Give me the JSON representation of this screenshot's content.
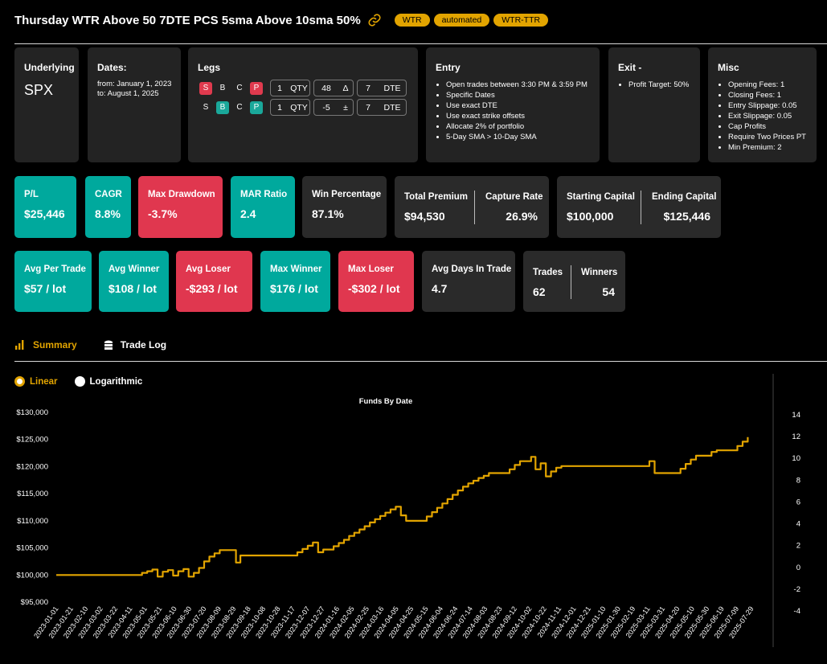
{
  "header": {
    "title": "Thursday WTR Above 50 7DTE PCS 5sma Above 10sma 50%",
    "tags": [
      "WTR",
      "automated",
      "WTR-TTR"
    ]
  },
  "config": {
    "underlying": {
      "label": "Underlying",
      "value": "SPX"
    },
    "dates": {
      "label": "Dates:",
      "from": "from: January 1, 2023",
      "to": "to: August 1, 2025"
    },
    "legs": {
      "label": "Legs",
      "rows": [
        {
          "s": "S",
          "b": "B",
          "c": "C",
          "p": "P",
          "qty": "1",
          "qty_unit": "QTY",
          "strike": "48",
          "strike_unit": "Δ",
          "dte": "7",
          "dte_unit": "DTE"
        },
        {
          "s": "S",
          "b": "B",
          "c": "C",
          "p": "P",
          "qty": "1",
          "qty_unit": "QTY",
          "strike": "-5",
          "strike_unit": "±",
          "dte": "7",
          "dte_unit": "DTE"
        }
      ]
    },
    "entry": {
      "label": "Entry",
      "items": [
        "Open trades between 3:30 PM & 3:59 PM",
        "Specific Dates",
        "Use exact DTE",
        "Use exact strike offsets",
        "Allocate 2% of portfolio",
        "5-Day SMA > 10-Day SMA"
      ]
    },
    "exit": {
      "label": "Exit -",
      "items": [
        "Profit Target: 50%"
      ]
    },
    "misc": {
      "label": "Misc",
      "items": [
        "Opening Fees: 1",
        "Closing Fees: 1",
        "Entry Slippage: 0.05",
        "Exit Slippage: 0.05",
        "Cap Profits",
        "Require Two Prices PT",
        "Min Premium: 2"
      ]
    }
  },
  "stats_row1": {
    "pl": {
      "label": "P/L",
      "value": "$25,446"
    },
    "cagr": {
      "label": "CAGR",
      "value": "8.8%"
    },
    "max_drawdown": {
      "label": "Max Drawdown",
      "value": "-3.7%"
    },
    "mar": {
      "label": "MAR Ratio",
      "value": "2.4"
    },
    "win_pct": {
      "label": "Win Percentage",
      "value": "87.1%"
    },
    "total_premium": {
      "label": "Total Premium",
      "value": "$94,530"
    },
    "capture_rate": {
      "label": "Capture Rate",
      "value": "26.9%"
    },
    "starting_capital": {
      "label": "Starting Capital",
      "value": "$100,000"
    },
    "ending_capital": {
      "label": "Ending Capital",
      "value": "$125,446"
    }
  },
  "stats_row2": {
    "avg_per_trade": {
      "label": "Avg Per Trade",
      "value": "$57 / lot"
    },
    "avg_winner": {
      "label": "Avg Winner",
      "value": "$108 / lot"
    },
    "avg_loser": {
      "label": "Avg Loser",
      "value": "-$293 / lot"
    },
    "max_winner": {
      "label": "Max Winner",
      "value": "$176 / lot"
    },
    "max_loser": {
      "label": "Max Loser",
      "value": "-$302 / lot"
    },
    "avg_days": {
      "label": "Avg Days In Trade",
      "value": "4.7"
    },
    "trades": {
      "label": "Trades",
      "value": "62"
    },
    "winners": {
      "label": "Winners",
      "value": "54"
    }
  },
  "tabs": {
    "summary": "Summary",
    "trade_log": "Trade Log"
  },
  "scale_options": {
    "linear": "Linear",
    "log": "Logarithmic",
    "selected": "linear"
  },
  "colors": {
    "accent": "#e2a400",
    "teal": "#00a99d",
    "red": "#e0374f",
    "card": "#232323"
  },
  "chart_data": {
    "type": "line",
    "title": "Funds By Date",
    "ylim": [
      95000,
      130000
    ],
    "yticks": [
      "$95,000",
      "$100,000",
      "$105,000",
      "$110,000",
      "$115,000",
      "$120,000",
      "$125,000",
      "$130,000"
    ],
    "y2ticks": [
      "-4",
      "-2",
      "0",
      "2",
      "4",
      "6",
      "8",
      "10",
      "12",
      "14"
    ],
    "xticks": [
      "2023-01-01",
      "2023-01-21",
      "2023-02-10",
      "2023-03-02",
      "2023-03-22",
      "2023-04-11",
      "2023-05-01",
      "2023-05-21",
      "2023-06-10",
      "2023-06-30",
      "2023-07-20",
      "2023-08-09",
      "2023-08-29",
      "2023-09-18",
      "2023-10-08",
      "2023-10-28",
      "2023-11-17",
      "2023-12-07",
      "2023-12-27",
      "2024-01-16",
      "2024-02-05",
      "2024-02-25",
      "2024-03-16",
      "2024-04-05",
      "2024-04-25",
      "2024-05-15",
      "2024-06-04",
      "2024-06-24",
      "2024-07-14",
      "2024-08-03",
      "2024-08-23",
      "2024-09-12",
      "2024-10-02",
      "2024-10-22",
      "2024-11-11",
      "2024-12-01",
      "2024-12-21",
      "2025-01-10",
      "2025-01-30",
      "2025-02-19",
      "2025-03-11",
      "2025-03-31",
      "2025-04-20",
      "2025-05-10",
      "2025-05-30",
      "2025-06-19",
      "2025-07-09",
      "2025-07-29"
    ],
    "series": [
      {
        "color": "#e2a400",
        "points": [
          [
            "2023-01-01",
            100000
          ],
          [
            "2023-04-26",
            100000
          ],
          [
            "2023-04-27",
            100400
          ],
          [
            "2023-05-04",
            100700
          ],
          [
            "2023-05-11",
            101000
          ],
          [
            "2023-05-18",
            99700
          ],
          [
            "2023-05-25",
            100600
          ],
          [
            "2023-06-01",
            100900
          ],
          [
            "2023-06-08",
            99900
          ],
          [
            "2023-06-15",
            100700
          ],
          [
            "2023-06-22",
            101100
          ],
          [
            "2023-06-29",
            99700
          ],
          [
            "2023-07-06",
            100400
          ],
          [
            "2023-07-13",
            101300
          ],
          [
            "2023-07-20",
            102500
          ],
          [
            "2023-07-27",
            103400
          ],
          [
            "2023-08-03",
            104000
          ],
          [
            "2023-08-10",
            104600
          ],
          [
            "2023-08-31",
            104600
          ],
          [
            "2023-09-01",
            102300
          ],
          [
            "2023-09-07",
            103600
          ],
          [
            "2023-11-16",
            103600
          ],
          [
            "2023-11-23",
            104200
          ],
          [
            "2023-11-30",
            104800
          ],
          [
            "2023-12-07",
            105400
          ],
          [
            "2023-12-14",
            106000
          ],
          [
            "2023-12-21",
            104200
          ],
          [
            "2023-12-28",
            104700
          ],
          [
            "2024-01-04",
            104700
          ],
          [
            "2024-01-11",
            105300
          ],
          [
            "2024-01-18",
            105900
          ],
          [
            "2024-01-25",
            106500
          ],
          [
            "2024-02-01",
            107200
          ],
          [
            "2024-02-08",
            107800
          ],
          [
            "2024-02-15",
            108400
          ],
          [
            "2024-02-22",
            109000
          ],
          [
            "2024-02-29",
            109700
          ],
          [
            "2024-03-07",
            110300
          ],
          [
            "2024-03-14",
            110900
          ],
          [
            "2024-03-21",
            111500
          ],
          [
            "2024-03-28",
            112100
          ],
          [
            "2024-04-04",
            112600
          ],
          [
            "2024-04-11",
            111000
          ],
          [
            "2024-04-18",
            110000
          ],
          [
            "2024-05-09",
            110000
          ],
          [
            "2024-05-16",
            110800
          ],
          [
            "2024-05-23",
            111600
          ],
          [
            "2024-05-30",
            112400
          ],
          [
            "2024-06-06",
            113200
          ],
          [
            "2024-06-13",
            114000
          ],
          [
            "2024-06-20",
            114800
          ],
          [
            "2024-06-27",
            115600
          ],
          [
            "2024-07-04",
            116300
          ],
          [
            "2024-07-11",
            116900
          ],
          [
            "2024-07-18",
            117400
          ],
          [
            "2024-07-25",
            117900
          ],
          [
            "2024-08-01",
            118300
          ],
          [
            "2024-08-08",
            118800
          ],
          [
            "2024-08-29",
            118800
          ],
          [
            "2024-09-05",
            119500
          ],
          [
            "2024-09-12",
            120300
          ],
          [
            "2024-09-19",
            121000
          ],
          [
            "2024-10-03",
            121000
          ],
          [
            "2024-10-04",
            121800
          ],
          [
            "2024-10-10",
            119500
          ],
          [
            "2024-10-17",
            120600
          ],
          [
            "2024-10-24",
            118200
          ],
          [
            "2024-10-31",
            119100
          ],
          [
            "2024-11-07",
            119800
          ],
          [
            "2024-11-14",
            120100
          ],
          [
            "2025-03-06",
            120100
          ],
          [
            "2025-03-13",
            121000
          ],
          [
            "2025-03-20",
            118800
          ],
          [
            "2025-04-17",
            118800
          ],
          [
            "2025-04-24",
            119600
          ],
          [
            "2025-05-01",
            120500
          ],
          [
            "2025-05-08",
            121300
          ],
          [
            "2025-05-15",
            122000
          ],
          [
            "2025-05-29",
            122000
          ],
          [
            "2025-06-05",
            122700
          ],
          [
            "2025-06-12",
            123000
          ],
          [
            "2025-07-03",
            123000
          ],
          [
            "2025-07-10",
            123800
          ],
          [
            "2025-07-17",
            124600
          ],
          [
            "2025-07-24",
            125446
          ]
        ]
      }
    ]
  }
}
